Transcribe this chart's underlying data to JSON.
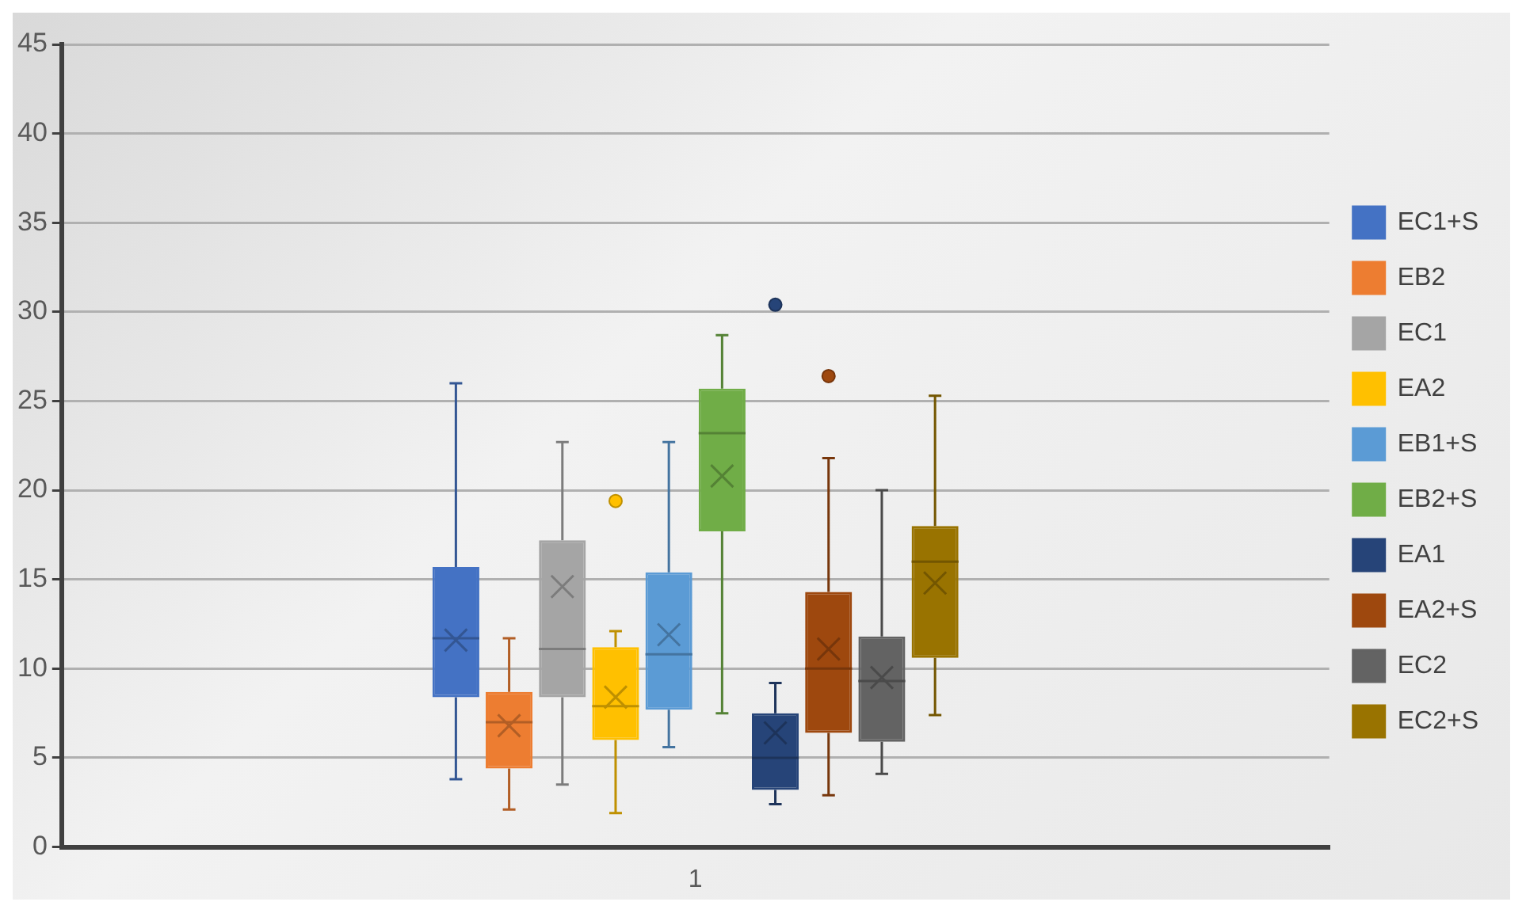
{
  "chart_data": {
    "type": "box",
    "categories": [
      "1"
    ],
    "ylim": [
      0,
      45
    ],
    "yticks": [
      0,
      5,
      10,
      15,
      20,
      25,
      30,
      35,
      40,
      45
    ],
    "grid": "y",
    "legend": "right",
    "series": [
      {
        "name": "EC1+S",
        "color": "#4472c4",
        "boxes": [
          {
            "low": 3.8,
            "q1": 8.4,
            "median": 11.7,
            "q3": 15.7,
            "high": 26,
            "mean": 11.6
          }
        ]
      },
      {
        "name": "EB2",
        "color": "#ed7d31",
        "boxes": [
          {
            "low": 2.1,
            "q1": 4.4,
            "median": 7.0,
            "q3": 8.7,
            "high": 11.7,
            "mean": 6.8
          }
        ]
      },
      {
        "name": "EC1",
        "color": "#a5a5a5",
        "boxes": [
          {
            "low": 3.5,
            "q1": 8.4,
            "median": 11.1,
            "q3": 17.2,
            "high": 22.7,
            "mean": 14.6
          }
        ]
      },
      {
        "name": "EA2",
        "color": "#ffc000",
        "boxes": [
          {
            "low": 1.9,
            "q1": 6.0,
            "median": 7.9,
            "q3": 11.2,
            "high": 12.1,
            "mean": 8.4,
            "outliers": [
              19.4
            ]
          }
        ]
      },
      {
        "name": "EB1+S",
        "color": "#5b9bd5",
        "boxes": [
          {
            "low": 5.6,
            "q1": 7.7,
            "median": 10.8,
            "q3": 15.4,
            "high": 22.7,
            "mean": 11.9
          }
        ]
      },
      {
        "name": "EB2+S",
        "color": "#70ad47",
        "boxes": [
          {
            "low": 7.5,
            "q1": 17.7,
            "median": 23.2,
            "q3": 25.7,
            "high": 28.7,
            "mean": 20.8
          }
        ]
      },
      {
        "name": "EA1",
        "color": "#264478",
        "boxes": [
          {
            "low": 2.4,
            "q1": 3.2,
            "median": 5.0,
            "q3": 7.5,
            "high": 9.2,
            "mean": 6.4,
            "outliers": [
              30.4
            ]
          }
        ]
      },
      {
        "name": "EA2+S",
        "color": "#9e480e",
        "boxes": [
          {
            "low": 2.9,
            "q1": 6.4,
            "median": 10.0,
            "q3": 14.3,
            "high": 21.8,
            "mean": 11.1,
            "outliers": [
              26.4
            ]
          }
        ]
      },
      {
        "name": "EC2",
        "color": "#636363",
        "boxes": [
          {
            "low": 4.1,
            "q1": 5.9,
            "median": 9.3,
            "q3": 11.8,
            "high": 20.0,
            "mean": 9.5
          }
        ]
      },
      {
        "name": "EC2+S",
        "color": "#997300",
        "boxes": [
          {
            "low": 7.4,
            "q1": 10.6,
            "median": 16.0,
            "q3": 18.0,
            "high": 25.3,
            "mean": 14.8
          }
        ]
      }
    ]
  }
}
